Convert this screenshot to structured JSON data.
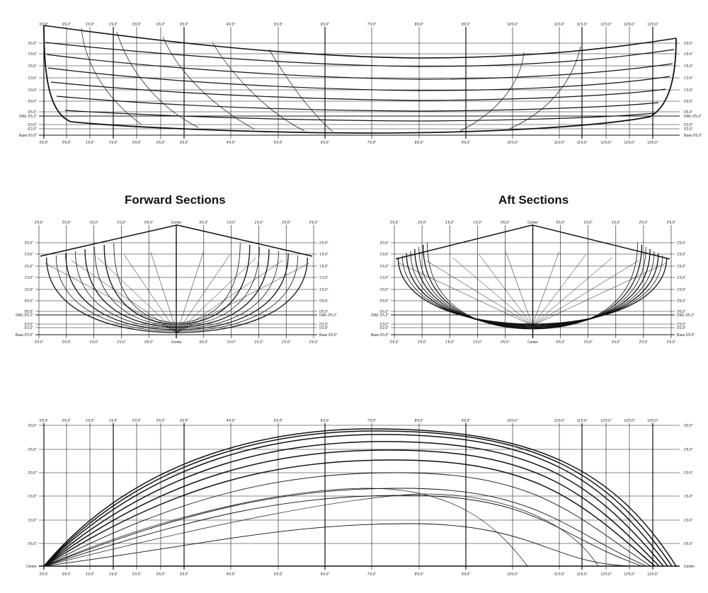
{
  "headings": {
    "forward": "Forward Sections",
    "aft": "Aft Sections"
  },
  "station_labels": [
    "0'0.0\"",
    "0'6.0\"",
    "1'0.0\"",
    "1'6.0\"",
    "2'0.0\"",
    "2'6.0\"",
    "3'0.0\"",
    "4'0.0\"",
    "5'0.0\"",
    "6'0.0\"",
    "7'0.0\"",
    "8'0.0\"",
    "9'0.0\"",
    "10'0.0\"",
    "11'0.0\"",
    "11'6.0\"",
    "12'0.0\"",
    "12'6.0\"",
    "13'0.0\""
  ],
  "profile_view": {
    "waterline_labels_left": [
      "2'0.0\"",
      "1'9.0\"",
      "1'6.0\"",
      "1'3.0\"",
      "1'0.0\"",
      "0'9.0\"",
      "0'6.0\"",
      "DWL 0'5.2\"",
      "0'3.0\"",
      "0'2.0\"",
      "Base 0'0.0\""
    ],
    "waterline_labels_right": [
      "2'0.0\"",
      "1'9.0\"",
      "1'6.0\"",
      "1'3.0\"",
      "1'0.0\"",
      "0'9.0\"",
      "0'6.0\"",
      "DWL 0'5.2\"",
      "0'3.0\"",
      "0'2.0\"",
      "Base 0'0.0\""
    ]
  },
  "forward_sections": {
    "buttock_labels": [
      "2'6.0\"",
      "2'0.0\"",
      "1'6.0\"",
      "1'0.0\"",
      "0'6.0\"",
      "Center",
      "0'6.0\"",
      "1'0.0\"",
      "1'6.0\"",
      "2'0.0\"",
      "2'6.0\""
    ],
    "waterline_labels_left": [
      "2'0.0\"",
      "1'9.0\"",
      "1'6.0\"",
      "1'3.0\"",
      "1'0.0\"",
      "0'9.0\"",
      "0'6.0\"",
      "DWL 0'5.2\"",
      "0'3.0\"",
      "0'2.0\"",
      "Base 0'0.0\""
    ],
    "waterline_labels_right": [
      "2'0.0\"",
      "1'9.0\"",
      "1'6.0\"",
      "1'3.0\"",
      "1'0.0\"",
      "0'9.0\"",
      "0'6.0\"",
      "DWL 0'5.2\"",
      "0'3.0\"",
      "0'2.0\"",
      "Base 0'0.0\""
    ]
  },
  "aft_sections": {
    "buttock_labels": [
      "2'6.0\"",
      "2'0.0\"",
      "1'6.0\"",
      "1'0.0\"",
      "0'6.0\"",
      "Center",
      "0'6.0\"",
      "1'0.0\"",
      "1'6.0\"",
      "2'0.0\"",
      "2'6.0\""
    ],
    "waterline_labels_left": [
      "2'0.0\"",
      "1'9.0\"",
      "1'6.0\"",
      "1'3.0\"",
      "1'0.0\"",
      "0'9.0\"",
      "0'6.0\"",
      "DWL 0'5.2\"",
      "0'3.0\"",
      "0'2.0\"",
      "Base 0'0.0\""
    ],
    "waterline_labels_right": [
      "2'0.0\"",
      "1'9.0\"",
      "1'6.0\"",
      "1'3.0\"",
      "1'0.0\"",
      "0'9.0\"",
      "0'6.0\"",
      "DWL 0'5.2\"",
      "0'3.0\"",
      "0'2.0\"",
      "Base 0'0.0\""
    ]
  },
  "plan_view": {
    "buttock_labels_left": [
      "3'0.0\"",
      "2'6.0\"",
      "2'0.0\"",
      "1'6.0\"",
      "1'0.0\"",
      "0'6.0\"",
      "Center"
    ],
    "buttock_labels_right": [
      "3'0.0\"",
      "2'6.0\"",
      "2'0.0\"",
      "1'6.0\"",
      "1'0.0\"",
      "0'6.0\"",
      "Center"
    ]
  }
}
